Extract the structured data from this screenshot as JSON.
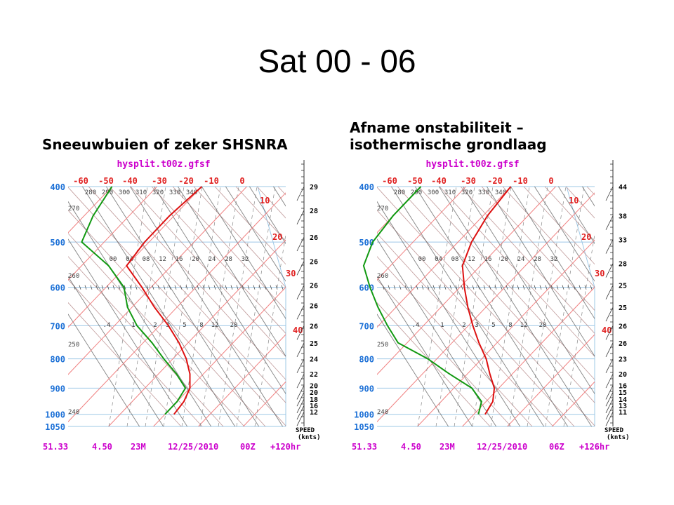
{
  "slide": {
    "title": "Sat 00 - 06",
    "left_subtitle": "Sneeuwbuien of zeker SHSNRA",
    "right_subtitle_line1": "Afname onstabiliteit –",
    "right_subtitle_line2": "isothermische grondlaag"
  },
  "colors": {
    "temperature_line": "#dd1111",
    "dewpoint_line": "#119911",
    "isotherm": "#f08080",
    "dry_adiabat": "#b08080",
    "moist_adiabat": "#5a5a5a",
    "mixing_ratio": "#888888",
    "isobar": "#9ec8e6",
    "pressure_label": "#1a6fd6",
    "header_text": "#cc00cc"
  },
  "chart_data": [
    {
      "type": "line",
      "header": "hysplit.t00z.gfsf",
      "footer": [
        "51.33",
        "4.50",
        "23M",
        "12/25/2010",
        "00Z",
        "+120hr"
      ],
      "y_axis": "pressure (hPa), log scale",
      "pressure_ticks": [
        "400",
        "500",
        "600",
        "700",
        "800",
        "900",
        "1000",
        "1050"
      ],
      "isotherm_labels_top": [
        "-60",
        "-50",
        "-40",
        "-30",
        "-20",
        "-10",
        "0"
      ],
      "isotherm_labels_right": [
        "10",
        "20",
        "30",
        "40"
      ],
      "potential_temp_labels": [
        "280",
        "290",
        "300",
        "310",
        "320",
        "330",
        "340"
      ],
      "left_edge_labels": [
        "270",
        "260",
        "250",
        "240"
      ],
      "mixing_ratio_labels_upper": [
        "00",
        "04",
        "08",
        "12",
        "16",
        "20",
        "24",
        "28",
        "32"
      ],
      "mixing_ratio_labels_lower": [
        ".4",
        "1",
        "2",
        "3",
        "5",
        "8",
        "12",
        "20"
      ],
      "wind_speed_label": [
        "SPEED",
        "(knts)"
      ],
      "wind_speeds": [
        {
          "p": 400,
          "v": "29"
        },
        {
          "p": 440,
          "v": "28"
        },
        {
          "p": 490,
          "v": "26"
        },
        {
          "p": 540,
          "v": "26"
        },
        {
          "p": 595,
          "v": "26"
        },
        {
          "p": 645,
          "v": "26"
        },
        {
          "p": 700,
          "v": "26"
        },
        {
          "p": 750,
          "v": "25"
        },
        {
          "p": 800,
          "v": "24"
        },
        {
          "p": 850,
          "v": "22"
        },
        {
          "p": 890,
          "v": "20"
        },
        {
          "p": 915,
          "v": "20"
        },
        {
          "p": 940,
          "v": "18"
        },
        {
          "p": 965,
          "v": "16"
        },
        {
          "p": 990,
          "v": "12"
        }
      ],
      "series": [
        {
          "role": "temperature",
          "points": [
            [
              400,
              -40
            ],
            [
              450,
              -41
            ],
            [
              500,
              -41
            ],
            [
              550,
              -40
            ],
            [
              600,
              -32
            ],
            [
              650,
              -25
            ],
            [
              700,
              -18
            ],
            [
              750,
              -12
            ],
            [
              800,
              -7
            ],
            [
              850,
              -3
            ],
            [
              900,
              0
            ],
            [
              950,
              1.5
            ],
            [
              1000,
              2
            ]
          ]
        },
        {
          "role": "dewpoint",
          "points": [
            [
              400,
              -60
            ],
            [
              450,
              -58
            ],
            [
              500,
              -55
            ],
            [
              550,
              -44
            ],
            [
              600,
              -36
            ],
            [
              650,
              -31
            ],
            [
              700,
              -25
            ],
            [
              750,
              -18
            ],
            [
              800,
              -12
            ],
            [
              850,
              -6
            ],
            [
              900,
              -1
            ],
            [
              950,
              0
            ],
            [
              1000,
              0
            ]
          ]
        }
      ]
    },
    {
      "type": "line",
      "header": "hysplit.t00z.gfsf",
      "footer": [
        "51.33",
        "4.50",
        "23M",
        "12/25/2010",
        "06Z",
        "+126hr"
      ],
      "y_axis": "pressure (hPa), log scale",
      "pressure_ticks": [
        "400",
        "500",
        "600",
        "700",
        "800",
        "900",
        "1000",
        "1050"
      ],
      "isotherm_labels_top": [
        "-60",
        "-50",
        "-40",
        "-30",
        "-20",
        "-10",
        "0"
      ],
      "isotherm_labels_right": [
        "10",
        "20",
        "30",
        "40"
      ],
      "potential_temp_labels": [
        "280",
        "290",
        "300",
        "310",
        "320",
        "330",
        "340"
      ],
      "left_edge_labels": [
        "270",
        "260",
        "250",
        "240"
      ],
      "mixing_ratio_labels_upper": [
        "00",
        "04",
        "08",
        "12",
        "16",
        "20",
        "24",
        "28",
        "32"
      ],
      "mixing_ratio_labels_lower": [
        ".4",
        "1",
        "2",
        "3",
        "5",
        "8",
        "12",
        "20"
      ],
      "wind_speed_label": [
        "SPEED",
        "(knts)"
      ],
      "wind_speeds": [
        {
          "p": 400,
          "v": "44"
        },
        {
          "p": 450,
          "v": "38"
        },
        {
          "p": 495,
          "v": "33"
        },
        {
          "p": 545,
          "v": "28"
        },
        {
          "p": 595,
          "v": "25"
        },
        {
          "p": 650,
          "v": "25"
        },
        {
          "p": 700,
          "v": "26"
        },
        {
          "p": 750,
          "v": "26"
        },
        {
          "p": 800,
          "v": "23"
        },
        {
          "p": 850,
          "v": "20"
        },
        {
          "p": 890,
          "v": "16"
        },
        {
          "p": 915,
          "v": "15"
        },
        {
          "p": 940,
          "v": "14"
        },
        {
          "p": 965,
          "v": "13"
        },
        {
          "p": 990,
          "v": "11"
        }
      ],
      "series": [
        {
          "role": "temperature",
          "points": [
            [
              400,
              -40
            ],
            [
              450,
              -39
            ],
            [
              500,
              -37
            ],
            [
              550,
              -34
            ],
            [
              600,
              -29
            ],
            [
              650,
              -24
            ],
            [
              700,
              -19
            ],
            [
              750,
              -14
            ],
            [
              800,
              -9
            ],
            [
              850,
              -5
            ],
            [
              900,
              -1
            ],
            [
              950,
              1.5
            ],
            [
              1000,
              2.5
            ]
          ]
        },
        {
          "role": "dewpoint",
          "points": [
            [
              400,
              -60
            ],
            [
              450,
              -60
            ],
            [
              500,
              -59
            ],
            [
              550,
              -56
            ],
            [
              600,
              -50
            ],
            [
              650,
              -44
            ],
            [
              700,
              -38
            ],
            [
              750,
              -32
            ],
            [
              800,
              -22
            ],
            [
              850,
              -14
            ],
            [
              900,
              -6
            ],
            [
              950,
              -1
            ],
            [
              1000,
              1
            ]
          ]
        }
      ]
    }
  ]
}
